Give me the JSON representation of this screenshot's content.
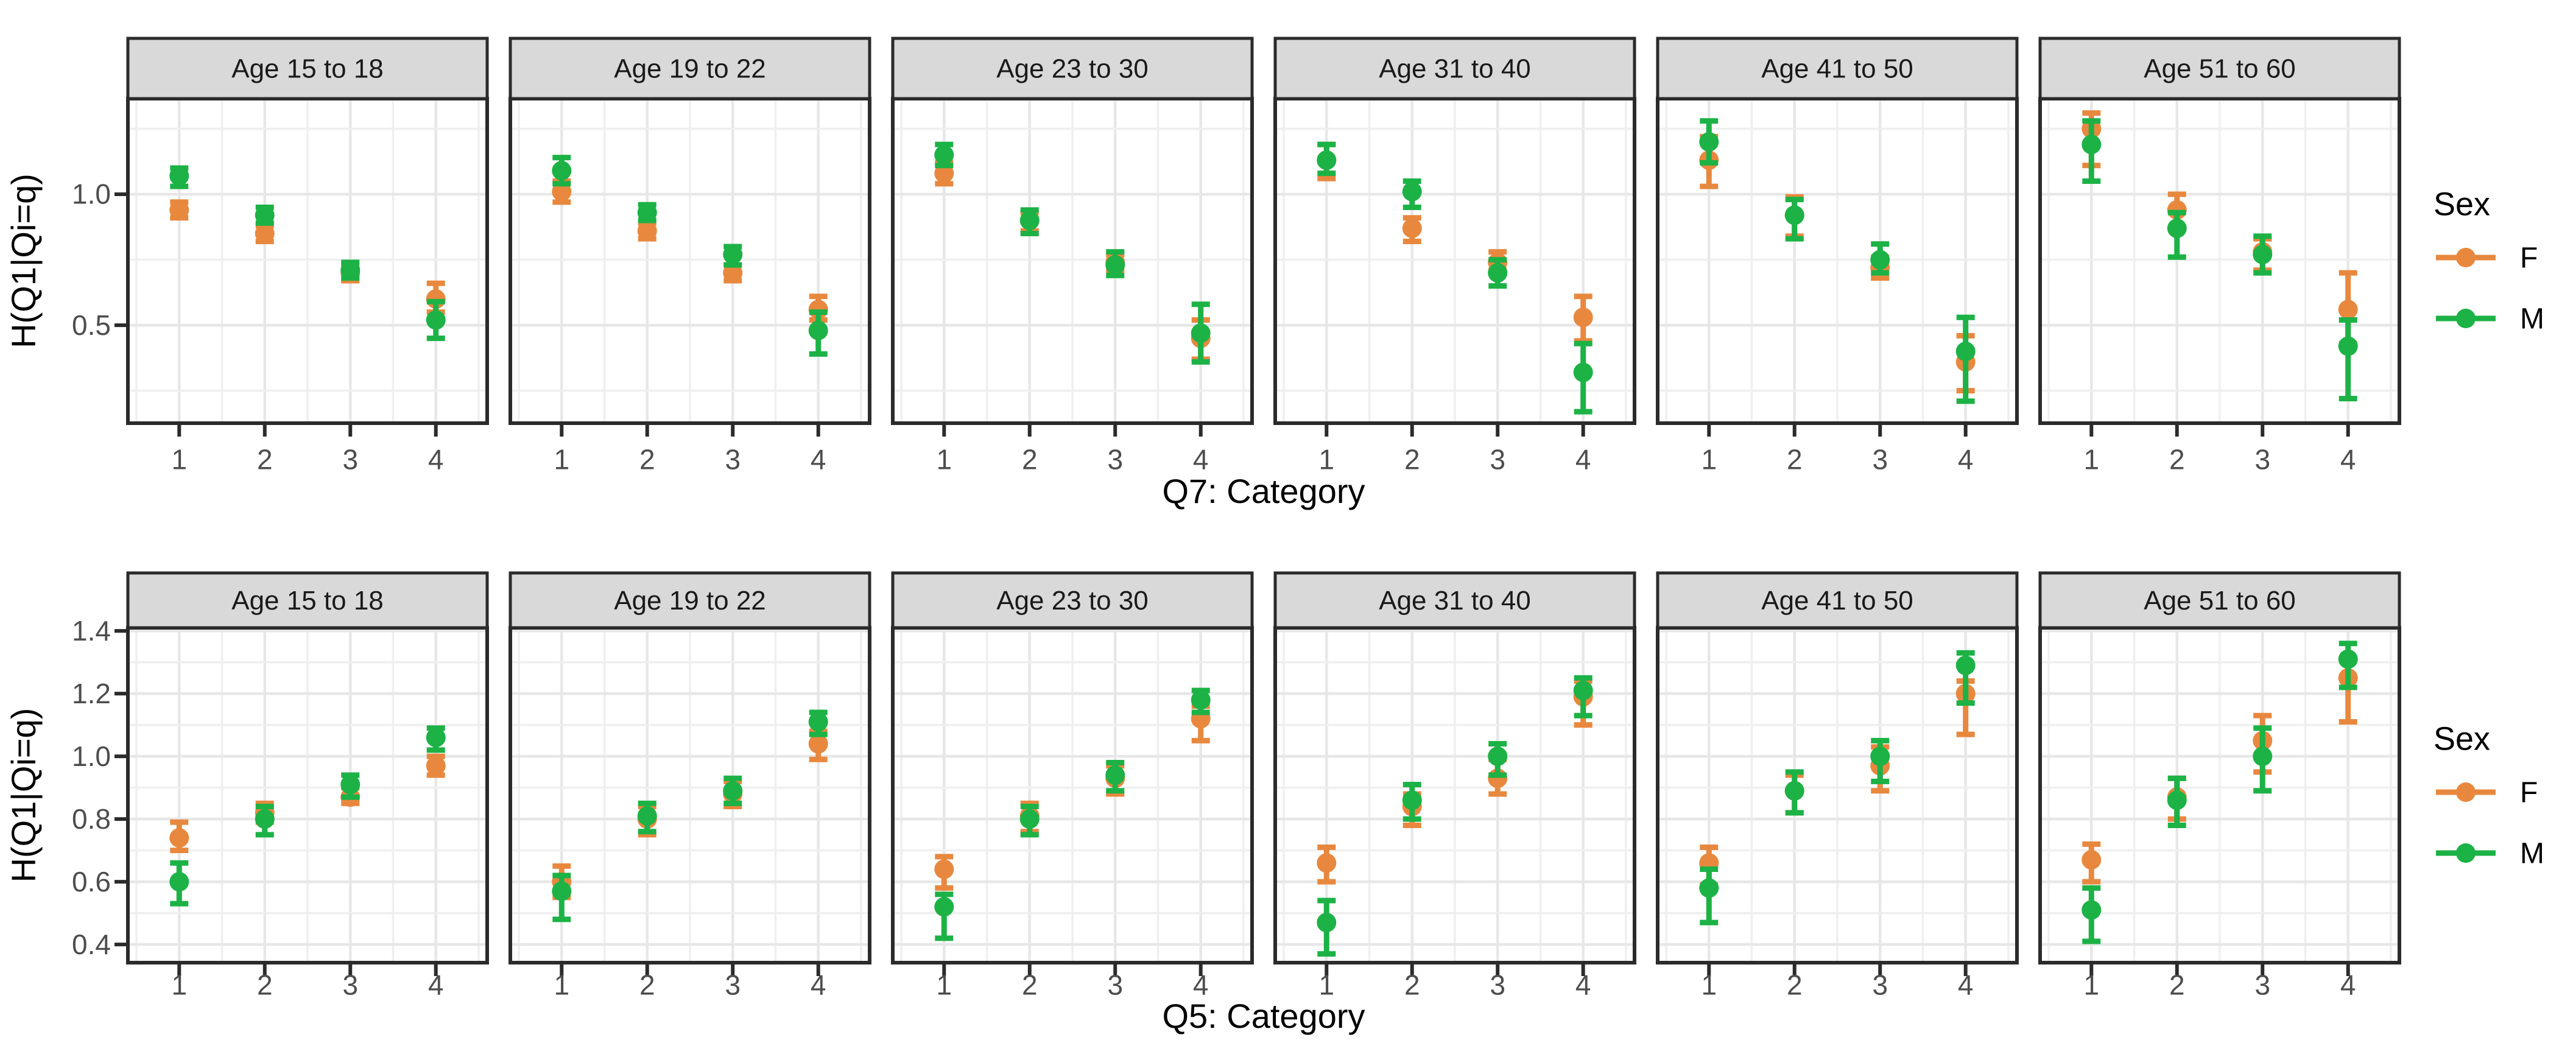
{
  "figure": {
    "y_axis_label": "H(Q1|Qi=q)",
    "legend": {
      "title": "Sex",
      "items": [
        {
          "label": "F"
        },
        {
          "label": "M"
        }
      ]
    }
  },
  "colors": {
    "F": "#E8883E",
    "M": "#1CB246",
    "strip_bg": "#D9D9D9",
    "strip_text": "#1A1A1A",
    "panel_border": "#2B2B2B",
    "grid_major": "#E7E7E7",
    "grid_minor": "#EFEFEF",
    "axis_text": "#4D4D4D",
    "title_text": "#000000",
    "panel_bg": "#FFFFFF"
  },
  "chart_data": [
    {
      "type": "scatter",
      "title": "",
      "ylabel": "H(Q1|Qi=q)",
      "xlabel": "Q7: Category",
      "x": [
        1,
        2,
        3,
        4
      ],
      "x_tick_labels": [
        "1",
        "2",
        "3",
        "4"
      ],
      "xlim": [
        0.4,
        4.6
      ],
      "x_minor": [
        0.5,
        1.5,
        2.5,
        3.5,
        4.5
      ],
      "ylim": [
        0.126,
        1.365
      ],
      "y_ticks": [
        0.5,
        1.0
      ],
      "y_tick_labels": [
        "0.5",
        "1.0"
      ],
      "y_minor": [
        0.25,
        0.75,
        1.25
      ],
      "grid": true,
      "legend_title": "Sex",
      "legend_position": "right",
      "series_names": [
        "F",
        "M"
      ],
      "facets": [
        {
          "label": "Age 15 to 18",
          "F": {
            "y": [
              0.94,
              0.85,
              0.7,
              0.6
            ],
            "lo": [
              0.91,
              0.82,
              0.67,
              0.55
            ],
            "hi": [
              0.97,
              0.88,
              0.73,
              0.66
            ]
          },
          "M": {
            "y": [
              1.07,
              0.92,
              0.71,
              0.52
            ],
            "lo": [
              1.03,
              0.89,
              0.68,
              0.45
            ],
            "hi": [
              1.1,
              0.95,
              0.74,
              0.59
            ]
          }
        },
        {
          "label": "Age 19 to 22",
          "F": {
            "y": [
              1.01,
              0.86,
              0.7,
              0.56
            ],
            "lo": [
              0.97,
              0.83,
              0.67,
              0.52
            ],
            "hi": [
              1.05,
              0.89,
              0.73,
              0.61
            ]
          },
          "M": {
            "y": [
              1.09,
              0.93,
              0.77,
              0.48
            ],
            "lo": [
              1.04,
              0.9,
              0.73,
              0.39
            ],
            "hi": [
              1.14,
              0.96,
              0.8,
              0.55
            ]
          }
        },
        {
          "label": "Age 23 to 30",
          "F": {
            "y": [
              1.08,
              0.9,
              0.74,
              0.45
            ],
            "lo": [
              1.04,
              0.86,
              0.71,
              0.37
            ],
            "hi": [
              1.12,
              0.93,
              0.77,
              0.52
            ]
          },
          "M": {
            "y": [
              1.15,
              0.9,
              0.73,
              0.47
            ],
            "lo": [
              1.11,
              0.85,
              0.69,
              0.36
            ],
            "hi": [
              1.19,
              0.94,
              0.78,
              0.58
            ]
          }
        },
        {
          "label": "Age 31 to 40",
          "F": {
            "y": [
              1.13,
              0.87,
              0.74,
              0.53
            ],
            "lo": [
              1.06,
              0.82,
              0.71,
              0.44
            ],
            "hi": [
              1.19,
              0.91,
              0.78,
              0.61
            ]
          },
          "M": {
            "y": [
              1.13,
              1.01,
              0.7,
              0.32
            ],
            "lo": [
              1.08,
              0.95,
              0.65,
              0.17
            ],
            "hi": [
              1.19,
              1.05,
              0.75,
              0.43
            ]
          }
        },
        {
          "label": "Age 41 to 50",
          "F": {
            "y": [
              1.13,
              0.92,
              0.72,
              0.36
            ],
            "lo": [
              1.03,
              0.84,
              0.68,
              0.25
            ],
            "hi": [
              1.22,
              0.99,
              0.76,
              0.46
            ]
          },
          "M": {
            "y": [
              1.2,
              0.92,
              0.75,
              0.4
            ],
            "lo": [
              1.12,
              0.83,
              0.7,
              0.21
            ],
            "hi": [
              1.28,
              0.98,
              0.81,
              0.53
            ]
          }
        },
        {
          "label": "Age 51 to 60",
          "F": {
            "y": [
              1.25,
              0.94,
              0.78,
              0.56
            ],
            "lo": [
              1.11,
              0.87,
              0.71,
              0.43
            ],
            "hi": [
              1.31,
              1.0,
              0.83,
              0.7
            ]
          },
          "M": {
            "y": [
              1.19,
              0.87,
              0.77,
              0.42
            ],
            "lo": [
              1.05,
              0.76,
              0.7,
              0.22
            ],
            "hi": [
              1.28,
              0.93,
              0.84,
              0.52
            ]
          }
        }
      ]
    },
    {
      "type": "scatter",
      "title": "",
      "ylabel": "H(Q1|Qi=q)",
      "xlabel": "Q5: Category",
      "x": [
        1,
        2,
        3,
        4
      ],
      "x_tick_labels": [
        "1",
        "2",
        "3",
        "4"
      ],
      "xlim": [
        0.4,
        4.6
      ],
      "x_minor": [
        0.5,
        1.5,
        2.5,
        3.5,
        4.5
      ],
      "ylim": [
        0.342,
        1.41
      ],
      "y_ticks": [
        0.4,
        0.6,
        0.8,
        1.0,
        1.2,
        1.4
      ],
      "y_tick_labels": [
        "0.4",
        "0.6",
        "0.8",
        "1.0",
        "1.2",
        "1.4"
      ],
      "y_minor": [
        0.5,
        0.7,
        0.9,
        1.1,
        1.3
      ],
      "grid": true,
      "legend_title": "Sex",
      "legend_position": "right",
      "series_names": [
        "F",
        "M"
      ],
      "facets": [
        {
          "label": "Age 15 to 18",
          "F": {
            "y": [
              0.74,
              0.82,
              0.87,
              0.97
            ],
            "lo": [
              0.7,
              0.79,
              0.85,
              0.94
            ],
            "hi": [
              0.79,
              0.85,
              0.9,
              1.0
            ]
          },
          "M": {
            "y": [
              0.6,
              0.8,
              0.91,
              1.06
            ],
            "lo": [
              0.53,
              0.75,
              0.87,
              1.02
            ],
            "hi": [
              0.66,
              0.84,
              0.94,
              1.09
            ]
          }
        },
        {
          "label": "Age 19 to 22",
          "F": {
            "y": [
              0.6,
              0.8,
              0.88,
              1.04
            ],
            "lo": [
              0.55,
              0.75,
              0.84,
              0.99
            ],
            "hi": [
              0.65,
              0.84,
              0.92,
              1.08
            ]
          },
          "M": {
            "y": [
              0.57,
              0.81,
              0.89,
              1.11
            ],
            "lo": [
              0.48,
              0.76,
              0.85,
              1.07
            ],
            "hi": [
              0.62,
              0.85,
              0.93,
              1.14
            ]
          }
        },
        {
          "label": "Age 23 to 30",
          "F": {
            "y": [
              0.64,
              0.81,
              0.93,
              1.12
            ],
            "lo": [
              0.58,
              0.76,
              0.88,
              1.05
            ],
            "hi": [
              0.68,
              0.85,
              0.97,
              1.16
            ]
          },
          "M": {
            "y": [
              0.52,
              0.8,
              0.94,
              1.18
            ],
            "lo": [
              0.42,
              0.75,
              0.89,
              1.14
            ],
            "hi": [
              0.56,
              0.84,
              0.98,
              1.21
            ]
          }
        },
        {
          "label": "Age 31 to 40",
          "F": {
            "y": [
              0.66,
              0.84,
              0.93,
              1.19
            ],
            "lo": [
              0.6,
              0.78,
              0.88,
              1.1
            ],
            "hi": [
              0.71,
              0.88,
              0.99,
              1.24
            ]
          },
          "M": {
            "y": [
              0.47,
              0.86,
              1.0,
              1.21
            ],
            "lo": [
              0.37,
              0.8,
              0.94,
              1.13
            ],
            "hi": [
              0.54,
              0.91,
              1.04,
              1.25
            ]
          }
        },
        {
          "label": "Age 41 to 50",
          "F": {
            "y": [
              0.66,
              0.89,
              0.97,
              1.2
            ],
            "lo": [
              0.59,
              0.82,
              0.89,
              1.07
            ],
            "hi": [
              0.71,
              0.94,
              1.03,
              1.24
            ]
          },
          "M": {
            "y": [
              0.58,
              0.89,
              1.0,
              1.29
            ],
            "lo": [
              0.47,
              0.82,
              0.92,
              1.17
            ],
            "hi": [
              0.64,
              0.95,
              1.05,
              1.33
            ]
          }
        },
        {
          "label": "Age 51 to 60",
          "F": {
            "y": [
              0.67,
              0.87,
              1.05,
              1.25
            ],
            "lo": [
              0.6,
              0.8,
              0.95,
              1.11
            ],
            "hi": [
              0.72,
              0.93,
              1.13,
              1.31
            ]
          },
          "M": {
            "y": [
              0.51,
              0.86,
              1.0,
              1.31
            ],
            "lo": [
              0.41,
              0.78,
              0.89,
              1.22
            ],
            "hi": [
              0.58,
              0.93,
              1.09,
              1.36
            ]
          }
        }
      ]
    }
  ]
}
